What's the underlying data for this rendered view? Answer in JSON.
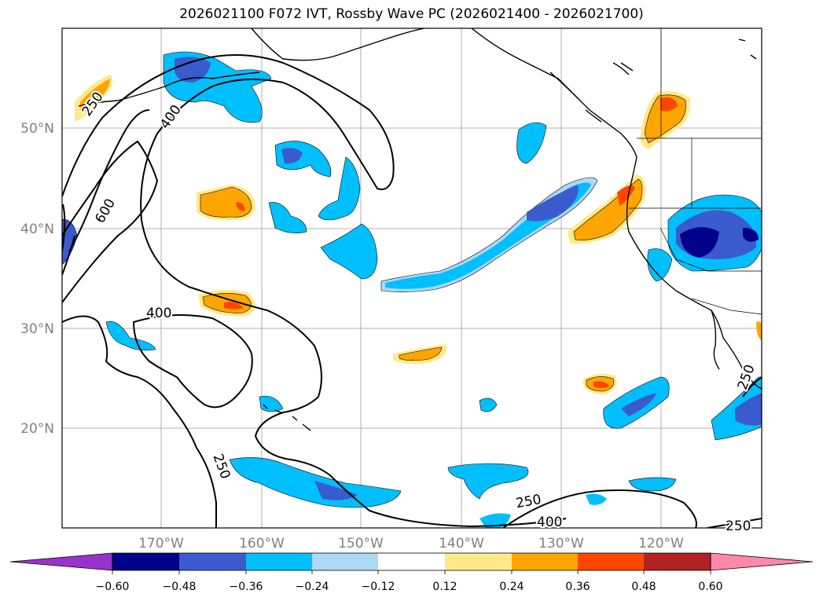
{
  "title": "2026021100 F072 IVT, Rossby Wave PC (2026021400 - 2026021700)",
  "axes": {
    "lat_labels": [
      "50°N",
      "40°N",
      "30°N",
      "20°N"
    ],
    "lon_labels": [
      "170°W",
      "160°W",
      "150°W",
      "140°W",
      "130°W",
      "120°W"
    ],
    "tick_color": "#808080"
  },
  "contour_labels": [
    "400",
    "600",
    "250",
    "400",
    "250",
    "250",
    "400",
    "250",
    "250"
  ],
  "colorbar": {
    "ticks": [
      "−0.60",
      "−0.48",
      "−0.36",
      "−0.24",
      "−0.12",
      "0.12",
      "0.24",
      "0.36",
      "0.48",
      "0.60"
    ],
    "colors": [
      "#9932cc",
      "#00008b",
      "#3a5bcd",
      "#00bfff",
      "#add8f6",
      "#ffffff",
      "#ffe98a",
      "#ffa500",
      "#ff4500",
      "#b22222",
      "#ff88aa"
    ]
  }
}
